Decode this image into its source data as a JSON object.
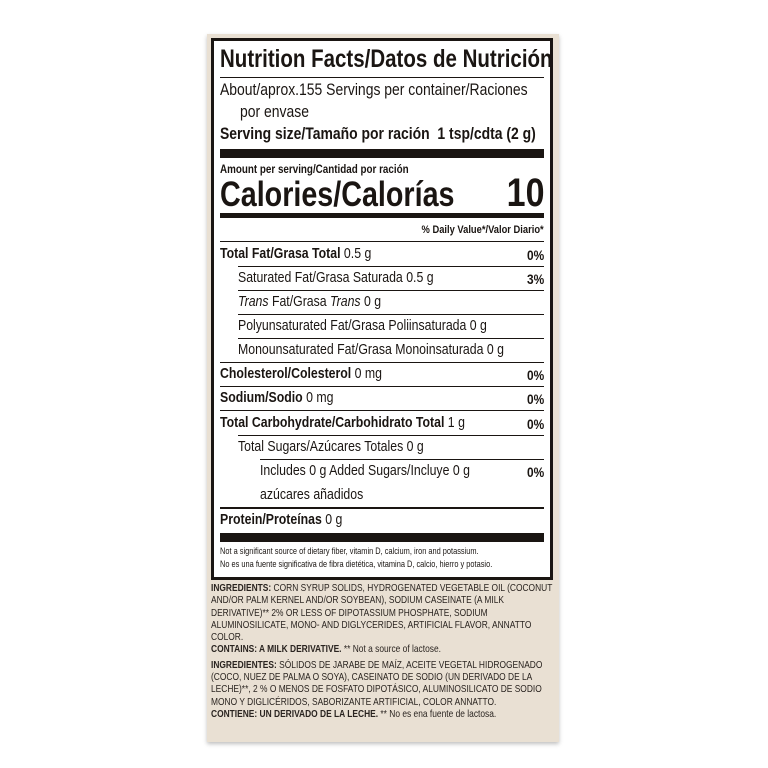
{
  "title": "Nutrition Facts/Datos de Nutrición",
  "servings": "About/aprox.155 Servings per container/Raciones",
  "servings_cont": "por envase",
  "serving_size_label": "Serving size/Tamaño por ración",
  "serving_size_value": "1 tsp/cdta (2 g)",
  "amount_per_serving": "Amount per serving/Cantidad por ración",
  "calories_label": "Calories/Calorías",
  "calories_value": "10",
  "daily_value_header": "% Daily Value*/Valor Diario*",
  "nutrients": [
    {
      "label": "Total Fat/Grasa Total",
      "amount": "0.5 g",
      "dv": "0%"
    },
    {
      "label": "Saturated Fat/Grasa Saturada 0.5 g",
      "amount": "",
      "dv": "3%"
    },
    {
      "label_italic1": "Trans",
      "label_mid": " Fat/Grasa ",
      "label_italic2": "Trans",
      "amount": " 0 g"
    },
    {
      "label": "Polyunsaturated Fat/Grasa Poliinsaturada 0 g"
    },
    {
      "label": "Monounsaturated Fat/Grasa Monoinsaturada 0 g"
    },
    {
      "label": "Cholesterol/Colesterol",
      "amount": "0 mg",
      "dv": "0%"
    },
    {
      "label": "Sodium/Sodio",
      "amount": "0 mg",
      "dv": "0%"
    },
    {
      "label": "Total Carbohydrate/Carbohidrato Total",
      "amount": "1 g",
      "dv": "0%"
    },
    {
      "label": "Total Sugars/Azúcares Totales 0 g"
    },
    {
      "label": "Includes 0 g Added Sugars/Incluye 0 g",
      "label_cont": "azúcares añadidos",
      "dv": "0%"
    },
    {
      "label": "Protein/Proteínas",
      "amount": "0 g"
    }
  ],
  "footnote_en": "Not a significant source of dietary fiber, vitamin D, calcium, iron and potassium.",
  "footnote_es": "No es una fuente significativa de fibra dietética, vitamina D, calcio, hierro y potasio.",
  "ingredients_en_label": "INGREDIENTS:",
  "ingredients_en": "CORN SYRUP SOLIDS, HYDROGENATED VEGETABLE OIL (COCONUT AND/OR PALM KERNEL AND/OR SOYBEAN), SODIUM CASEINATE (A MILK DERIVATIVE)** 2% OR LESS OF DIPOTASSIUM PHOSPHATE, SODIUM ALUMINOSILICATE, MONO- AND DIGLYCERIDES, ARTIFICIAL FLAVOR, ANNATTO COLOR.",
  "contains_en_label": "CONTAINS: A MILK DERIVATIVE.",
  "contains_en_note": "** Not a source of lactose.",
  "ingredients_es_label": "INGREDIENTES:",
  "ingredients_es": "SÓLIDOS DE JARABE DE MAÍZ, ACEITE VEGETAL HIDROGENADO (COCO, NUEZ DE PALMA O SOYA), CASEINATO DE SODIO (UN DERIVADO DE LA LECHE)**, 2 % O MENOS DE FOSFATO DIPOTÁSICO, ALUMINOSILICATO DE SODIO MONO Y DIGLICÉRIDOS, SABORIZANTE ARTIFICIAL, COLOR ANNATTO.",
  "contains_es_label": "CONTIENE: UN DERIVADO DE LA LECHE.",
  "contains_es_note": "** No es ena fuente de lactosa."
}
